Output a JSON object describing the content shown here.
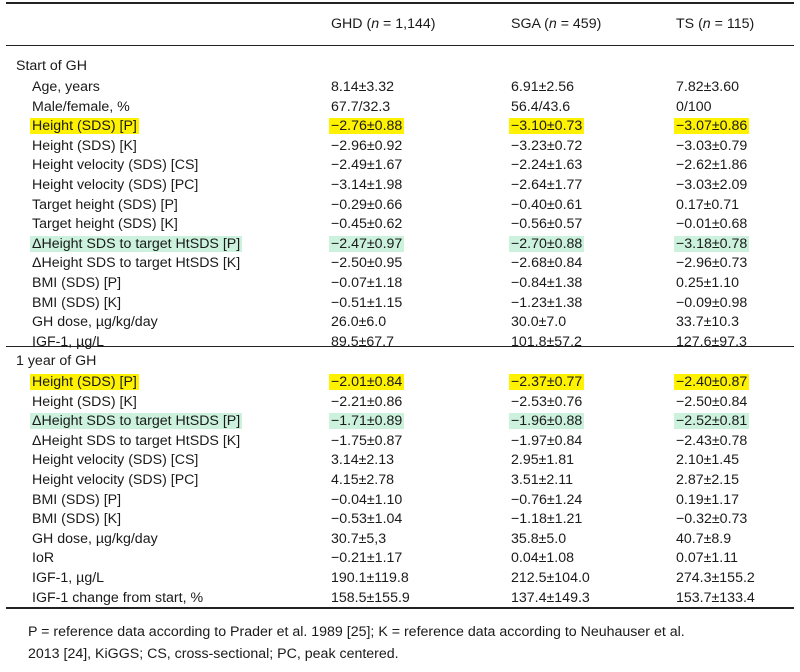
{
  "header": {
    "columns": [
      {
        "pre": "GHD (",
        "n": "n",
        "post": " = 1,144)"
      },
      {
        "pre": "SGA (",
        "n": "n",
        "post": " = 459)"
      },
      {
        "pre": "TS (",
        "n": "n",
        "post": " = 115)"
      }
    ]
  },
  "sections": [
    {
      "title": "Start of GH",
      "rows": [
        {
          "label": "Age, years",
          "v": [
            "8.14±3.32",
            "6.91±2.56",
            "7.82±3.60"
          ],
          "hl": ""
        },
        {
          "label": "Male/female, %",
          "v": [
            "67.7/32.3",
            "56.4/43.6",
            "0/100"
          ],
          "hl": ""
        },
        {
          "label": "Height (SDS) [P]",
          "v": [
            "−2.76±0.88",
            "−3.10±0.73",
            "−3.07±0.86"
          ],
          "hl": "yellow"
        },
        {
          "label": "Height (SDS) [K]",
          "v": [
            "−2.96±0.92",
            "−3.23±0.72",
            "−3.03±0.79"
          ],
          "hl": ""
        },
        {
          "label": "Height velocity (SDS) [CS]",
          "v": [
            "−2.49±1.67",
            "−2.24±1.63",
            "−2.62±1.86"
          ],
          "hl": ""
        },
        {
          "label": "Height velocity (SDS) [PC]",
          "v": [
            "−3.14±1.98",
            "−2.64±1.77",
            "−3.03±2.09"
          ],
          "hl": ""
        },
        {
          "label": "Target height (SDS) [P]",
          "v": [
            "−0.29±0.66",
            "−0.40±0.61",
            "0.17±0.71"
          ],
          "hl": ""
        },
        {
          "label": "Target height (SDS) [K]",
          "v": [
            "−0.45±0.62",
            "−0.56±0.57",
            "−0.01±0.68"
          ],
          "hl": ""
        },
        {
          "label": "ΔHeight SDS to target HtSDS [P]",
          "v": [
            "−2.47±0.97",
            "−2.70±0.88",
            "−3.18±0.78"
          ],
          "hl": "green"
        },
        {
          "label": "ΔHeight SDS to target HtSDS [K]",
          "v": [
            "−2.50±0.95",
            "−2.68±0.84",
            "−2.96±0.73"
          ],
          "hl": ""
        },
        {
          "label": "BMI (SDS) [P]",
          "v": [
            "−0.07±1.18",
            "−0.84±1.38",
            "0.25±1.10"
          ],
          "hl": ""
        },
        {
          "label": "BMI (SDS) [K]",
          "v": [
            "−0.51±1.15",
            "−1.23±1.38",
            "−0.09±0.98"
          ],
          "hl": ""
        },
        {
          "label": "GH dose, µg/kg/day",
          "v": [
            "26.0±6.0",
            "30.0±7.0",
            "33.7±10.3"
          ],
          "hl": ""
        },
        {
          "label": "IGF-1, µg/L",
          "v": [
            "89.5±67.7",
            "101.8±57.2",
            "127.6±97.3"
          ],
          "hl": ""
        }
      ]
    },
    {
      "title": "1 year of GH",
      "rows": [
        {
          "label": "Height (SDS) [P]",
          "v": [
            "−2.01±0.84",
            "−2.37±0.77",
            "−2.40±0.87"
          ],
          "hl": "yellow"
        },
        {
          "label": "Height (SDS) [K]",
          "v": [
            "−2.21±0.86",
            "−2.53±0.76",
            "−2.50±0.84"
          ],
          "hl": ""
        },
        {
          "label": "ΔHeight SDS to target HtSDS [P]",
          "v": [
            "−1.71±0.89",
            "−1.96±0.88",
            "−2.52±0.81"
          ],
          "hl": "green"
        },
        {
          "label": "ΔHeight SDS to target HtSDS [K]",
          "v": [
            "−1.75±0.87",
            "−1.97±0.84",
            "−2.43±0.78"
          ],
          "hl": ""
        },
        {
          "label": "Height velocity (SDS) [CS]",
          "v": [
            "3.14±2.13",
            "2.95±1.81",
            "2.10±1.45"
          ],
          "hl": ""
        },
        {
          "label": "Height velocity (SDS) [PC]",
          "v": [
            "4.15±2.78",
            "3.51±2.11",
            "2.87±2.15"
          ],
          "hl": ""
        },
        {
          "label": "BMI (SDS) [P]",
          "v": [
            "−0.04±1.10",
            "−0.76±1.24",
            "0.19±1.17"
          ],
          "hl": ""
        },
        {
          "label": "BMI (SDS) [K]",
          "v": [
            "−0.53±1.04",
            "−1.18±1.21",
            "−0.32±0.73"
          ],
          "hl": ""
        },
        {
          "label": "GH dose, µg/kg/day",
          "v": [
            "30.7±5,3",
            "35.8±5.0",
            "40.7±8.9"
          ],
          "hl": ""
        },
        {
          "label": "IoR",
          "v": [
            "−0.21±1.17",
            "0.04±1.08",
            "0.07±1.11"
          ],
          "hl": ""
        },
        {
          "label": "IGF-1, µg/L",
          "v": [
            "190.1±119.8",
            "212.5±104.0",
            "274.3±155.2"
          ],
          "hl": ""
        },
        {
          "label": "IGF-1 change from start, %",
          "v": [
            "158.5±155.9",
            "137.4±149.3",
            "153.7±133.4"
          ],
          "hl": ""
        }
      ]
    }
  ],
  "footnote": {
    "line1": "P = reference data according to Prader et al. 1989 [25]; K = reference data according to Neuhauser et al.",
    "line2": "2013 [24], KiGGS; CS, cross-sectional; PC, peak centered."
  },
  "colors": {
    "highlight_yellow": "#fff200",
    "highlight_green": "#ccf2de"
  }
}
